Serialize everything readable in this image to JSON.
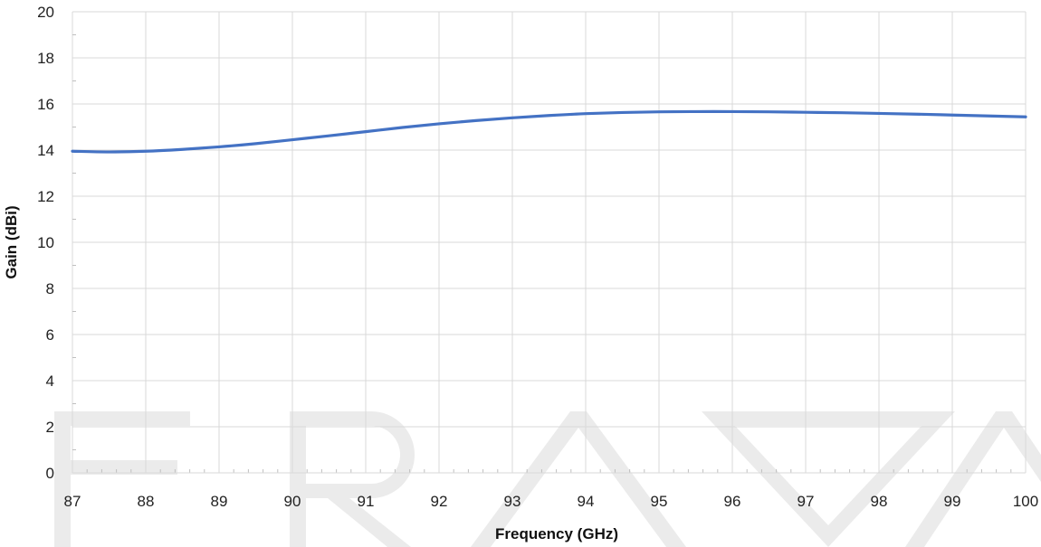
{
  "colors": {
    "series": "#4472c4",
    "grid": "#d9d9d9",
    "axis": "#d9d9d9",
    "watermark": "#ebebeb"
  },
  "chart_data": {
    "type": "line",
    "title": "",
    "xlabel": "Frequency (GHz)",
    "ylabel": "Gain (dBi)",
    "xlim": [
      87,
      100
    ],
    "ylim": [
      0,
      20
    ],
    "x_ticks": [
      87,
      88,
      89,
      90,
      91,
      92,
      93,
      94,
      95,
      96,
      97,
      98,
      99,
      100
    ],
    "y_ticks": [
      0,
      2,
      4,
      6,
      8,
      10,
      12,
      14,
      16,
      18,
      20
    ],
    "grid": true,
    "legend": "none",
    "series": [
      {
        "x": [
          87,
          87.5,
          88,
          88.5,
          89,
          89.5,
          90,
          90.5,
          91,
          91.5,
          92,
          92.5,
          93,
          93.5,
          94,
          94.5,
          95,
          95.5,
          96,
          96.5,
          97,
          97.5,
          98,
          98.5,
          99,
          99.5,
          100
        ],
        "y": [
          13.95,
          13.92,
          13.95,
          14.03,
          14.14,
          14.28,
          14.45,
          14.62,
          14.8,
          14.98,
          15.14,
          15.28,
          15.4,
          15.5,
          15.58,
          15.63,
          15.66,
          15.67,
          15.67,
          15.66,
          15.64,
          15.62,
          15.59,
          15.56,
          15.52,
          15.48,
          15.44
        ]
      }
    ]
  }
}
